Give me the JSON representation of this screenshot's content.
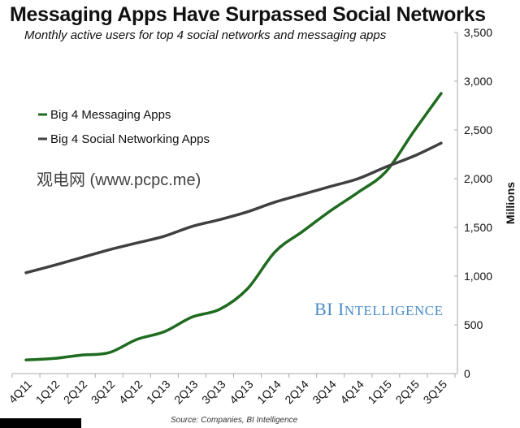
{
  "chart_data": {
    "type": "line",
    "title": "Messaging Apps Have Surpassed Social Networks",
    "subtitle": "Monthly active users for top 4 social networks and messaging apps",
    "xlabel": "",
    "ylabel": "Millions",
    "ylim": [
      0,
      3500
    ],
    "yticks": [
      "0",
      "500",
      "1,000",
      "1,500",
      "2,000",
      "2,500",
      "3,000",
      "3,500"
    ],
    "ytick_values": [
      0,
      500,
      1000,
      1500,
      2000,
      2500,
      3000,
      3500
    ],
    "categories": [
      "4Q11",
      "1Q12",
      "2Q12",
      "3Q12",
      "4Q12",
      "1Q13",
      "2Q13",
      "3Q13",
      "4Q13",
      "1Q14",
      "2Q14",
      "3Q14",
      "4Q14",
      "1Q15",
      "2Q15",
      "3Q15"
    ],
    "series": [
      {
        "name": "Big 4 Messaging Apps",
        "color": "#1f6b1f",
        "values": [
          140,
          155,
          190,
          215,
          350,
          430,
          580,
          660,
          870,
          1250,
          1460,
          1670,
          1860,
          2070,
          2480,
          2875
        ]
      },
      {
        "name": "Big 4 Social Networking Apps",
        "color": "#404040",
        "values": [
          1035,
          1110,
          1190,
          1270,
          1340,
          1410,
          1510,
          1580,
          1660,
          1760,
          1840,
          1920,
          2000,
          2120,
          2230,
          2365
        ]
      }
    ],
    "legend_position": "top-left",
    "grid": false,
    "source": "Source: Companies, BI Intelligence",
    "brand": "BI Intelligence"
  },
  "watermark": "观电网 (www.pcpc.me)"
}
